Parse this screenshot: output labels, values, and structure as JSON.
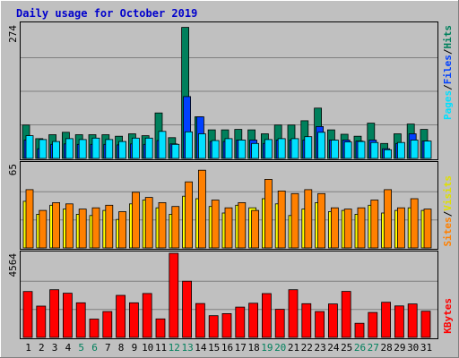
{
  "title": "Daily usage for October 2019",
  "colors": {
    "background": "#c0c0c0",
    "title": "#0000cc",
    "hits": "#00805c",
    "files": "#0040ff",
    "pages": "#00e0ff",
    "visits": "#ffff00",
    "sites": "#ff8000",
    "kbytes": "#ff0000",
    "weekend_label": "#00805c",
    "weekday_label": "#000000"
  },
  "chart_data": [
    {
      "type": "bar",
      "title": "Daily usage for October 2019",
      "panel": "hits-files-pages",
      "ymax_label": "274",
      "ylim": [
        0,
        274
      ],
      "legend": {
        "pages": "Pages",
        "files": "Files",
        "hits": "Hits",
        "sep": "/"
      },
      "categories": [
        "1",
        "2",
        "3",
        "4",
        "5",
        "6",
        "7",
        "8",
        "9",
        "10",
        "11",
        "12",
        "13",
        "14",
        "15",
        "16",
        "17",
        "18",
        "19",
        "20",
        "21",
        "22",
        "23",
        "24",
        "25",
        "26",
        "27",
        "28",
        "29",
        "30",
        "31"
      ],
      "series": [
        {
          "name": "Hits",
          "values": [
            69,
            41,
            49,
            54,
            49,
            49,
            49,
            46,
            51,
            47,
            94,
            43,
            271,
            86,
            59,
            59,
            60,
            59,
            51,
            69,
            69,
            78,
            104,
            59,
            50,
            46,
            73,
            31,
            51,
            71,
            60
          ]
        },
        {
          "name": "Files",
          "values": [
            38,
            20,
            29,
            30,
            29,
            29,
            29,
            28,
            30,
            29,
            37,
            30,
            128,
            86,
            35,
            35,
            38,
            38,
            31,
            38,
            38,
            38,
            66,
            38,
            38,
            36,
            38,
            20,
            31,
            51,
            36
          ]
        },
        {
          "name": "Pages",
          "values": [
            47,
            39,
            35,
            41,
            39,
            42,
            39,
            35,
            42,
            42,
            56,
            29,
            55,
            51,
            37,
            41,
            38,
            31,
            39,
            41,
            41,
            45,
            54,
            38,
            34,
            35,
            33,
            18,
            33,
            38,
            36
          ]
        }
      ]
    },
    {
      "type": "bar",
      "panel": "visits-sites",
      "ymax_label": "65",
      "ylim": [
        0,
        65
      ],
      "legend": {
        "sites": "Sites",
        "visits": "Visits",
        "sep": "/"
      },
      "categories": [
        "1",
        "2",
        "3",
        "4",
        "5",
        "6",
        "7",
        "8",
        "9",
        "10",
        "11",
        "12",
        "13",
        "14",
        "15",
        "16",
        "17",
        "18",
        "19",
        "20",
        "21",
        "22",
        "23",
        "24",
        "25",
        "26",
        "27",
        "28",
        "29",
        "30",
        "31"
      ],
      "series": [
        {
          "name": "Visits",
          "values": [
            36,
            26,
            33,
            30,
            26,
            25,
            29,
            22,
            34,
            37,
            31,
            26,
            40,
            38,
            32,
            27,
            33,
            31,
            38,
            34,
            25,
            30,
            35,
            28,
            29,
            26,
            33,
            27,
            29,
            31,
            29
          ]
        },
        {
          "name": "Sites",
          "values": [
            45,
            29,
            35,
            34,
            30,
            31,
            33,
            28,
            43,
            39,
            35,
            32,
            51,
            60,
            37,
            31,
            35,
            29,
            53,
            44,
            42,
            45,
            42,
            31,
            30,
            31,
            37,
            45,
            31,
            38,
            30
          ]
        }
      ]
    },
    {
      "type": "bar",
      "panel": "kbytes",
      "ymax_label": "4564",
      "ylim": [
        0,
        4564
      ],
      "legend": {
        "kbytes": "KBytes"
      },
      "categories": [
        "1",
        "2",
        "3",
        "4",
        "5",
        "6",
        "7",
        "8",
        "9",
        "10",
        "11",
        "12",
        "13",
        "14",
        "15",
        "16",
        "17",
        "18",
        "19",
        "20",
        "21",
        "22",
        "23",
        "24",
        "25",
        "26",
        "27",
        "28",
        "29",
        "30",
        "31"
      ],
      "series": [
        {
          "name": "KBytes",
          "values": [
            2493,
            1697,
            2590,
            2399,
            1878,
            996,
            1405,
            2282,
            1880,
            2382,
            1005,
            4564,
            3050,
            1838,
            1178,
            1292,
            1646,
            1857,
            2378,
            1525,
            2589,
            1830,
            1405,
            1816,
            2496,
            768,
            1353,
            1909,
            1709,
            1818,
            1424
          ]
        }
      ]
    }
  ]
}
